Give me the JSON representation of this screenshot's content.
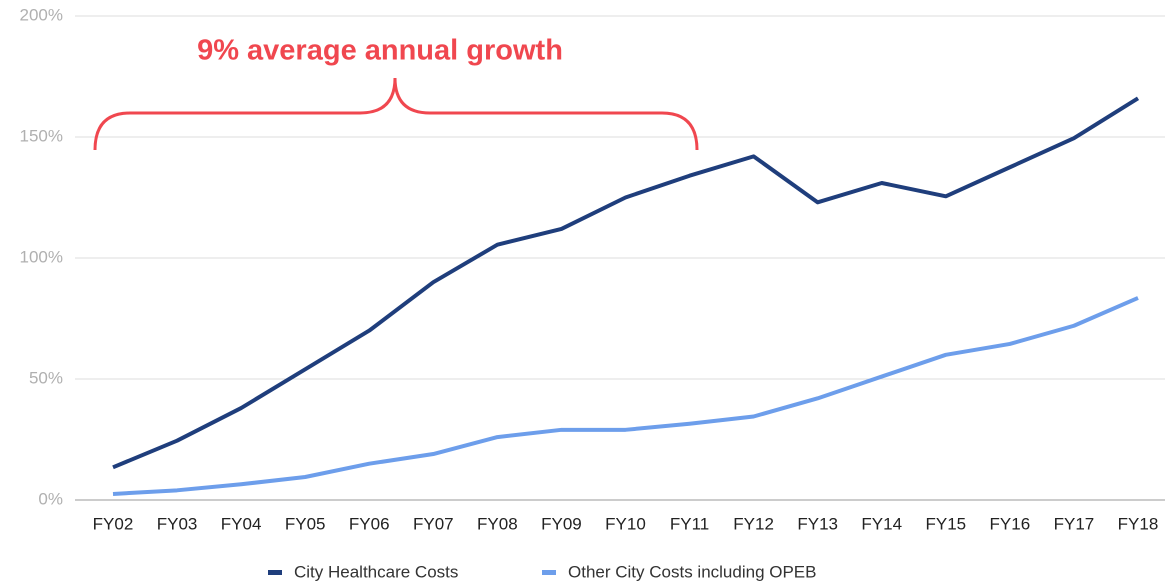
{
  "chart_data": {
    "type": "line",
    "annotation": "9% average annual growth",
    "categories": [
      "FY02",
      "FY03",
      "FY04",
      "FY05",
      "FY06",
      "FY07",
      "FY08",
      "FY09",
      "FY10",
      "FY11",
      "FY12",
      "FY13",
      "FY14",
      "FY15",
      "FY16",
      "FY17",
      "FY18"
    ],
    "series": [
      {
        "name": "City Healthcare Costs",
        "color": "#1f3e7c",
        "values": [
          13.5,
          24.5,
          38,
          54,
          70,
          90,
          105.5,
          112,
          125,
          134,
          142,
          123,
          131,
          125.5,
          137.5,
          149.5,
          166
        ]
      },
      {
        "name": "Other City Costs including OPEB",
        "color": "#6d9eeb",
        "values": [
          2.5,
          4,
          6.5,
          9.5,
          15,
          19,
          26,
          29,
          29,
          31.5,
          34.5,
          42,
          51,
          60,
          64.5,
          72,
          83.5
        ]
      }
    ],
    "ylim": [
      0,
      200
    ],
    "yticks": [
      {
        "value": 0,
        "label": "0%"
      },
      {
        "value": 50,
        "label": "50%"
      },
      {
        "value": 100,
        "label": "100%"
      },
      {
        "value": 150,
        "label": "150%"
      },
      {
        "value": 200,
        "label": "200%"
      }
    ],
    "grid": true,
    "legend": "bottom"
  }
}
